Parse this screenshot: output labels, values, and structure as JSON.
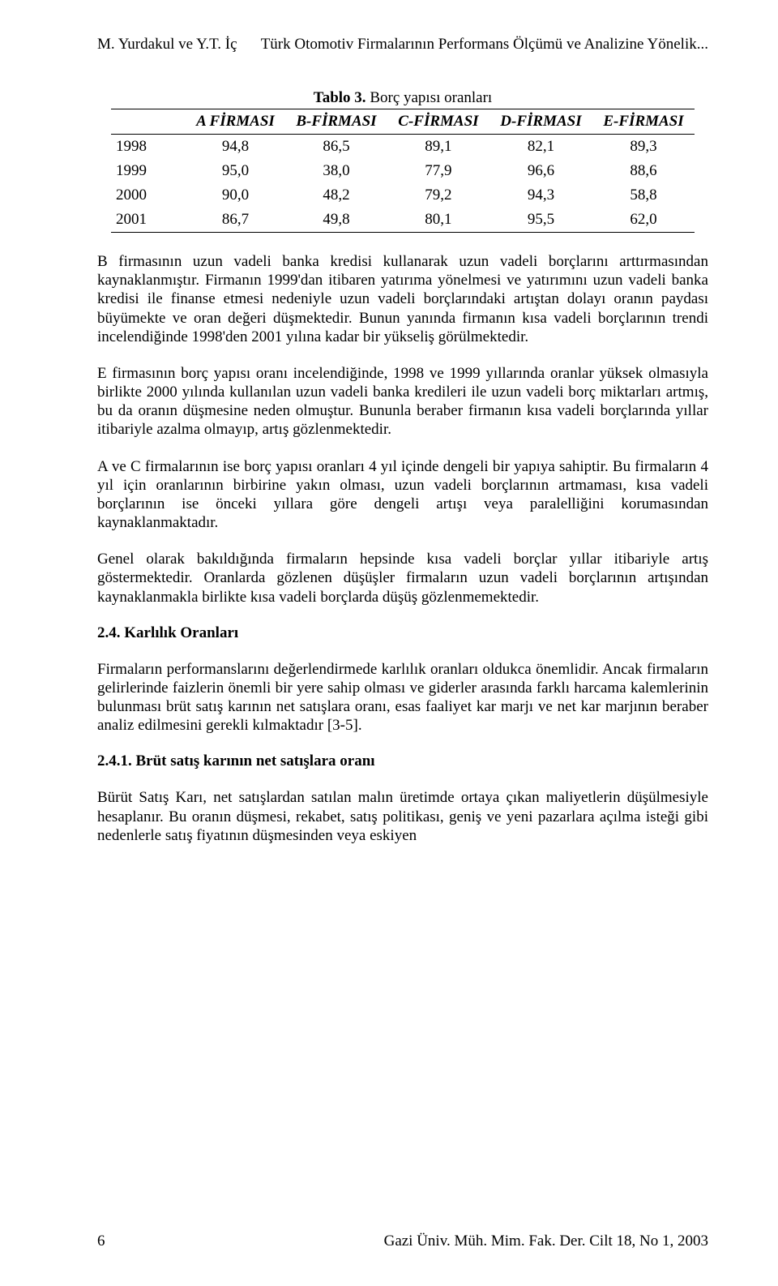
{
  "header": {
    "left": "M. Yurdakul ve Y.T. İç",
    "right": "Türk Otomotiv Firmalarının Performans Ölçümü ve Analizine Yönelik..."
  },
  "table": {
    "caption_prefix": "Tablo 3.",
    "caption_title": " Borç yapısı oranları",
    "columns": [
      "",
      "A FİRMASI",
      "B-FİRMASI",
      "C-FİRMASI",
      "D-FİRMASI",
      "E-FİRMASI"
    ],
    "rows": [
      [
        "1998",
        "94,8",
        "86,5",
        "89,1",
        "82,1",
        "89,3"
      ],
      [
        "1999",
        "95,0",
        "38,0",
        "77,9",
        "96,6",
        "88,6"
      ],
      [
        "2000",
        "90,0",
        "48,2",
        "79,2",
        "94,3",
        "58,8"
      ],
      [
        "2001",
        "86,7",
        "49,8",
        "80,1",
        "95,5",
        "62,0"
      ]
    ]
  },
  "paragraphs": {
    "p1": "B firmasının uzun vadeli banka kredisi kullanarak uzun vadeli borçlarını arttırmasından kaynaklanmıştır. Firmanın 1999'dan itibaren yatırıma yönelmesi ve yatırımını uzun vadeli banka kredisi ile finanse etmesi nedeniyle uzun vadeli borçlarındaki artıştan dolayı oranın paydası büyümekte ve oran değeri düşmektedir. Bunun yanında firmanın kısa vadeli borçlarının trendi incelendiğinde 1998'den 2001 yılına kadar bir yükseliş görülmektedir.",
    "p2": "E firmasının borç yapısı oranı incelendiğinde, 1998 ve 1999 yıllarında oranlar yüksek olmasıyla birlikte 2000 yılında kullanılan uzun vadeli banka kredileri ile uzun vadeli borç miktarları artmış, bu da oranın düşmesine neden olmuştur. Bununla beraber firmanın kısa vadeli borçlarında yıllar itibariyle azalma olmayıp, artış gözlenmektedir.",
    "p3": "A ve C firmalarının ise borç yapısı oranları 4 yıl içinde dengeli bir yapıya sahiptir. Bu firmaların 4 yıl için oranlarının birbirine yakın olması, uzun vadeli borçlarının artmaması, kısa vadeli borçlarının ise önceki yıllara göre dengeli artışı veya paralelliğini korumasından kaynaklanmaktadır.",
    "p4": "Genel olarak bakıldığında firmaların hepsinde kısa vadeli borçlar yıllar itibariyle artış göstermektedir. Oranlarda gözlenen düşüşler firmaların uzun vadeli borçlarının artışından kaynaklanmakla birlikte kısa vadeli borçlarda düşüş gözlenmemektedir.",
    "p5": "Firmaların performanslarını değerlendirmede karlılık oranları oldukca önemlidir. Ancak firmaların gelirlerinde faizlerin önemli bir yere sahip olması ve giderler arasında farklı harcama kalemlerinin bulunması brüt satış karının net satışlara oranı, esas faaliyet kar marjı ve net kar marjının beraber analiz edilmesini gerekli kılmaktadır [3-5].",
    "p6": "Bürüt Satış Karı, net satışlardan satılan malın üretimde ortaya çıkan maliyetlerin düşülmesiyle hesaplanır. Bu oranın düşmesi, rekabet, satış politikası, geniş ve yeni pazarlara açılma isteği gibi nedenlerle satış fiyatının düşmesinden veya eskiyen"
  },
  "sections": {
    "s1": "2.4. Karlılık Oranları",
    "s2": "2.4.1. Brüt satış karının net satışlara oranı"
  },
  "footer": {
    "page": "6",
    "right": "Gazi Üniv. Müh. Mim. Fak. Der. Cilt 18, No 1, 2003"
  }
}
